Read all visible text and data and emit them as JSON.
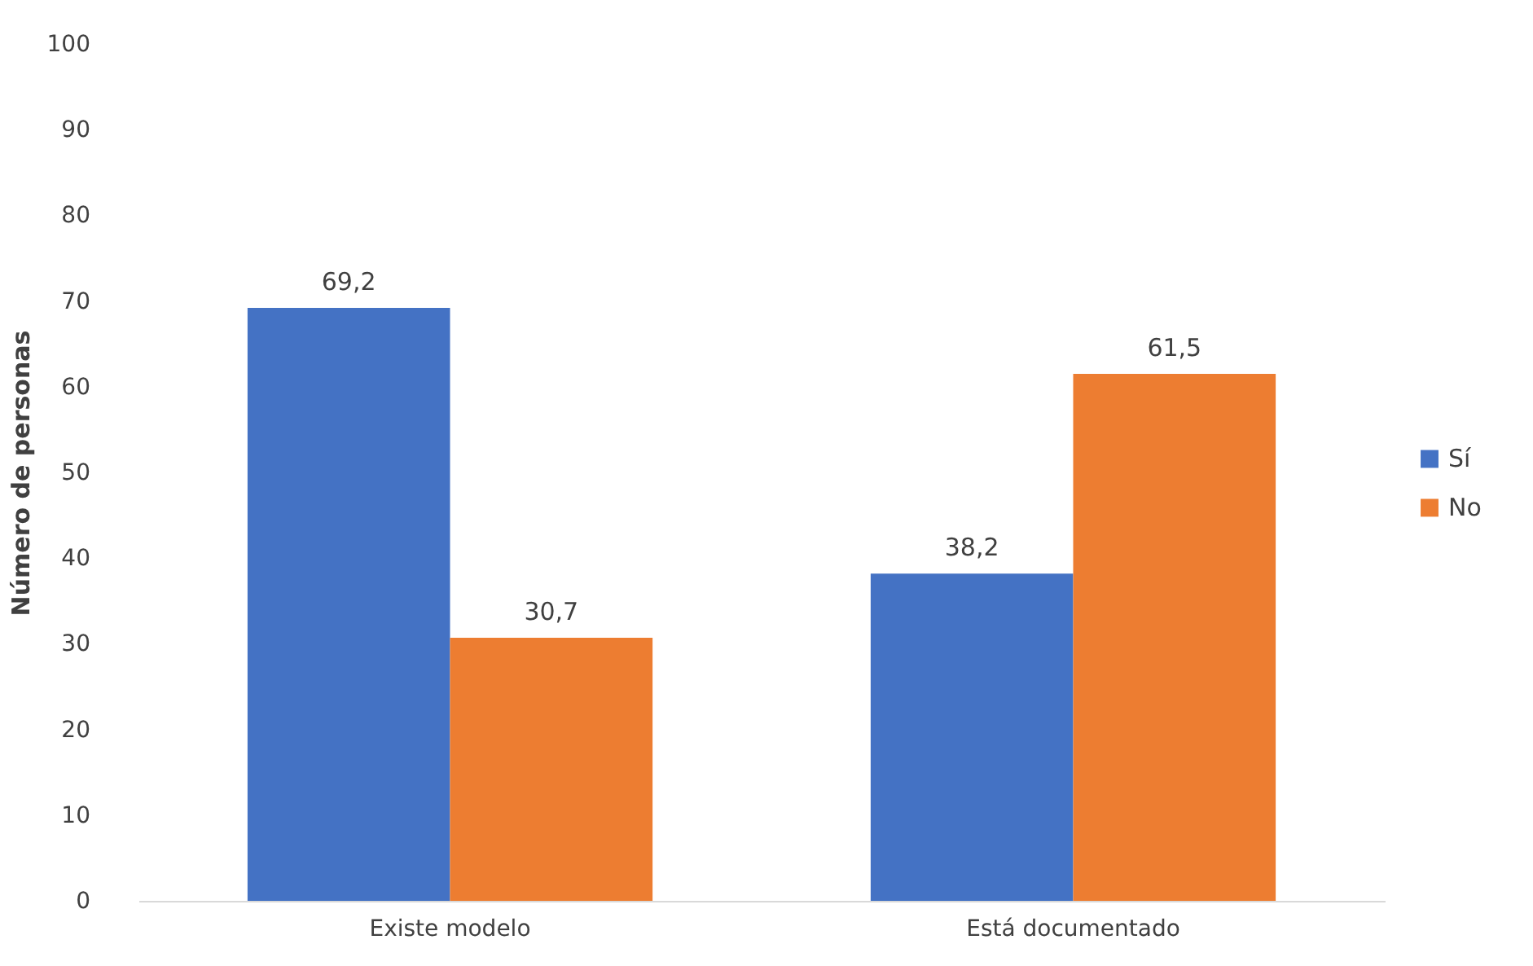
{
  "chart_data": {
    "type": "bar",
    "ylabel": "Número de personas",
    "categories": [
      "Existe modelo",
      "Está documentado"
    ],
    "series": [
      {
        "name": "Sí",
        "color": "#4472c4",
        "values": [
          69.2,
          38.2
        ],
        "value_labels": [
          "69,2",
          "38,2"
        ]
      },
      {
        "name": "No",
        "color": "#ed7d31",
        "values": [
          30.7,
          61.5
        ],
        "value_labels": [
          "30,7",
          "61,5"
        ]
      }
    ],
    "ylim": [
      0,
      100
    ],
    "yticks": [
      0,
      10,
      20,
      30,
      40,
      50,
      60,
      70,
      80,
      90,
      100
    ],
    "legend": "right"
  }
}
